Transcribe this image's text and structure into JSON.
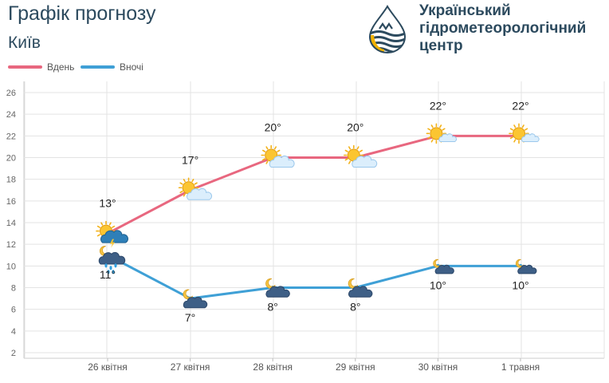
{
  "header": {
    "title": "Графік прогнозу",
    "city": "Київ",
    "org_line1": "Український",
    "org_line2": "гідрометеорологічний",
    "org_line3": "центр"
  },
  "colors": {
    "day": "#e8677f",
    "night": "#3fa0d6",
    "grid": "#e3e3e3",
    "text": "#2c4a5e"
  },
  "chart_data": {
    "type": "line",
    "categories": [
      "26 квітня",
      "27 квітня",
      "28 квітня",
      "29 квітня",
      "30 квітня",
      "1 травня"
    ],
    "series": [
      {
        "name": "Вдень",
        "values": [
          13,
          17,
          20,
          20,
          22,
          22
        ],
        "labels": [
          "13°",
          "17°",
          "20°",
          "20°",
          "22°",
          "22°"
        ],
        "icons": [
          "sun-thunder-rain-icon",
          "sun-cloud-icon",
          "sun-cloud-icon",
          "sun-cloud-icon",
          "sun-light-cloud-icon",
          "sun-light-cloud-icon"
        ]
      },
      {
        "name": "Вночі",
        "values": [
          11,
          7,
          8,
          8,
          10,
          10
        ],
        "labels": [
          "11°",
          "7°",
          "8°",
          "8°",
          "10°",
          "10°"
        ],
        "icons": [
          "moon-cloud-rain-icon",
          "moon-cloud-icon",
          "moon-cloud-icon",
          "moon-cloud-icon",
          "moon-light-cloud-icon",
          "moon-light-cloud-icon"
        ]
      }
    ],
    "y_ticks": [
      2,
      4,
      6,
      8,
      10,
      12,
      14,
      16,
      18,
      20,
      22,
      24,
      26
    ],
    "ylim": [
      2,
      26
    ],
    "grid": true,
    "legend": "top-left"
  }
}
